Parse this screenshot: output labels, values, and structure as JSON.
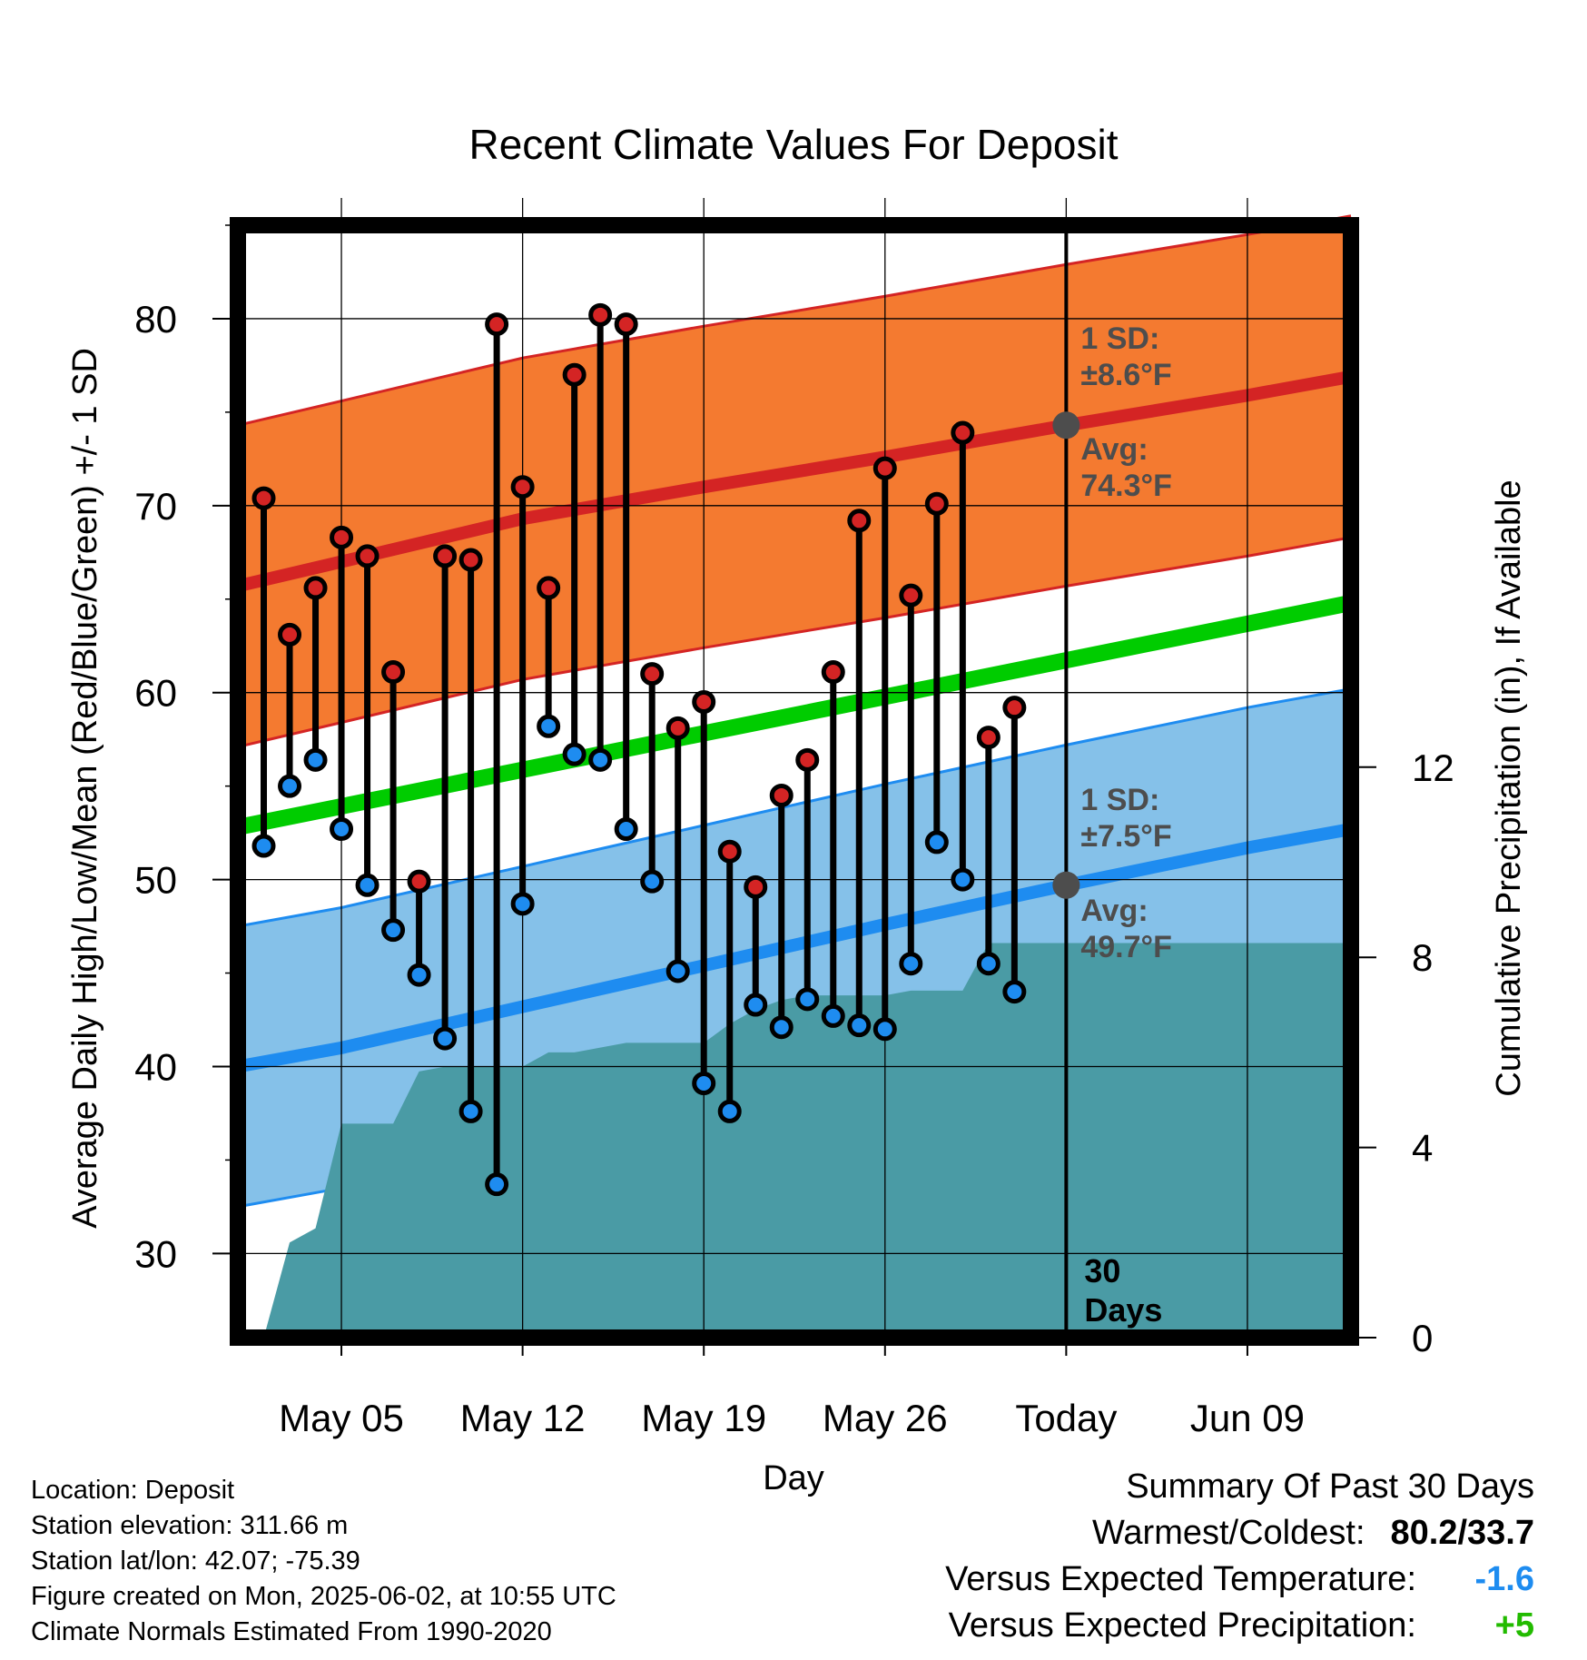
{
  "chart_data": {
    "type": "line",
    "title": "Recent Climate Values For Deposit",
    "xlabel": "Day",
    "ylabel": "Average Daily High/Low/Mean (Red/Blue/Green) +/- 1 SD",
    "y2label": "Cumulative Precipitation (in), If Available",
    "x_range": [
      "2025-05-01",
      "2025-06-13"
    ],
    "ylim": [
      25.5,
      85
    ],
    "y2lim": [
      0,
      23.4
    ],
    "grid": true,
    "x_tick_labels": [
      "May 05",
      "May 12",
      "May 19",
      "May 26",
      "Today",
      "Jun 09"
    ],
    "x_tick_dates": [
      "2025-05-05",
      "2025-05-12",
      "2025-05-19",
      "2025-05-26",
      "2025-06-02",
      "2025-06-09"
    ],
    "y_ticks": [
      30,
      40,
      50,
      60,
      70,
      80
    ],
    "y2_ticks": [
      0,
      4,
      8,
      12
    ],
    "normal_high": {
      "x": [
        "2025-05-01",
        "2025-05-05",
        "2025-05-12",
        "2025-05-19",
        "2025-05-26",
        "2025-06-02",
        "2025-06-09",
        "2025-06-13"
      ],
      "mean": [
        65.7,
        67.0,
        69.3,
        71.0,
        72.6,
        74.3,
        75.9,
        76.9
      ],
      "sd": 8.6,
      "color": "#d42424",
      "band_color": "#f47a30"
    },
    "normal_low": {
      "x": [
        "2025-05-01",
        "2025-05-05",
        "2025-05-12",
        "2025-05-19",
        "2025-05-26",
        "2025-06-02",
        "2025-06-09",
        "2025-06-13"
      ],
      "mean": [
        40.0,
        41.0,
        43.2,
        45.4,
        47.6,
        49.7,
        51.7,
        52.7
      ],
      "sd": 7.5,
      "color": "#1e8cf0",
      "band_color": "#85c1e9"
    },
    "normal_mean": {
      "x": [
        "2025-05-01",
        "2025-06-13"
      ],
      "values": [
        52.8,
        64.8
      ],
      "color": "#00cc00"
    },
    "daily": {
      "dates": [
        "2025-05-02",
        "2025-05-03",
        "2025-05-04",
        "2025-05-05",
        "2025-05-06",
        "2025-05-07",
        "2025-05-08",
        "2025-05-09",
        "2025-05-10",
        "2025-05-11",
        "2025-05-12",
        "2025-05-13",
        "2025-05-14",
        "2025-05-15",
        "2025-05-16",
        "2025-05-17",
        "2025-05-18",
        "2025-05-19",
        "2025-05-20",
        "2025-05-21",
        "2025-05-22",
        "2025-05-23",
        "2025-05-24",
        "2025-05-25",
        "2025-05-26",
        "2025-05-27",
        "2025-05-28",
        "2025-05-29",
        "2025-05-30",
        "2025-05-31",
        "2025-06-01"
      ],
      "highs": [
        70.4,
        63.1,
        65.6,
        68.3,
        67.3,
        61.1,
        49.9,
        67.3,
        67.1,
        79.7,
        71.0,
        65.6,
        77.0,
        80.2,
        79.7,
        61.0,
        58.1,
        59.5,
        51.5,
        49.6,
        54.5,
        56.4,
        61.1,
        69.2,
        72.0,
        65.2,
        70.1,
        73.9,
        57.6,
        59.2,
        null
      ],
      "lows": [
        51.8,
        55.0,
        56.4,
        52.7,
        49.7,
        47.3,
        44.9,
        41.5,
        37.6,
        33.7,
        48.7,
        58.2,
        56.7,
        56.4,
        52.7,
        49.9,
        45.1,
        39.1,
        37.6,
        43.3,
        42.1,
        43.6,
        42.7,
        42.2,
        42.0,
        45.5,
        52.0,
        50.0,
        45.5,
        44.0,
        null
      ],
      "high_color": "#d42424",
      "low_color": "#1e8cf0"
    },
    "precipitation": {
      "dates": [
        "2025-05-02",
        "2025-05-03",
        "2025-05-04",
        "2025-05-05",
        "2025-05-06",
        "2025-05-07",
        "2025-05-08",
        "2025-05-09",
        "2025-05-10",
        "2025-05-11",
        "2025-05-12",
        "2025-05-13",
        "2025-05-14",
        "2025-05-15",
        "2025-05-16",
        "2025-05-17",
        "2025-05-18",
        "2025-05-19",
        "2025-05-20",
        "2025-05-21",
        "2025-05-22",
        "2025-05-23",
        "2025-05-24",
        "2025-05-25",
        "2025-05-26",
        "2025-05-27",
        "2025-05-28",
        "2025-05-29",
        "2025-05-30",
        "2025-06-01",
        "2025-06-13"
      ],
      "cumulative": [
        0.0,
        2.0,
        2.3,
        4.5,
        4.5,
        4.5,
        5.6,
        5.7,
        5.7,
        5.7,
        5.7,
        6.0,
        6.0,
        6.1,
        6.2,
        6.2,
        6.2,
        6.2,
        6.6,
        6.9,
        7.1,
        7.2,
        7.2,
        7.2,
        7.2,
        7.3,
        7.3,
        7.3,
        8.3,
        8.3,
        8.3
      ],
      "color": "#4a9ba5"
    },
    "annotations": [
      {
        "text_line1": "1 SD:",
        "text_line2": "±8.6°F"
      },
      {
        "text_line1": "Avg:",
        "text_line2": "74.3°F"
      },
      {
        "text_line1": "1 SD:",
        "text_line2": "±7.5°F"
      },
      {
        "text_line1": "Avg:",
        "text_line2": "49.7°F"
      },
      {
        "text_line1": "30",
        "text_line2": "Days"
      }
    ],
    "today_date": "2025-06-02"
  },
  "info": {
    "location": "Location: Deposit",
    "elevation": "Station elevation: 311.66 m",
    "latlon": "Station lat/lon: 42.07; -75.39",
    "created": "Figure created on Mon, 2025-06-02, at 10:55 UTC",
    "normals": "Climate Normals Estimated From 1990-2020"
  },
  "summary": {
    "heading": "Summary Of Past 30 Days",
    "warm_cold_label": "Warmest/Coldest:",
    "warm_cold_value": "80.2/33.7",
    "temp_label": "Versus Expected Temperature:",
    "temp_value": "-1.6",
    "temp_color": "#1e8cf0",
    "precip_label": "Versus Expected Precipitation:",
    "precip_value": "+5",
    "precip_color": "#22bb00"
  }
}
